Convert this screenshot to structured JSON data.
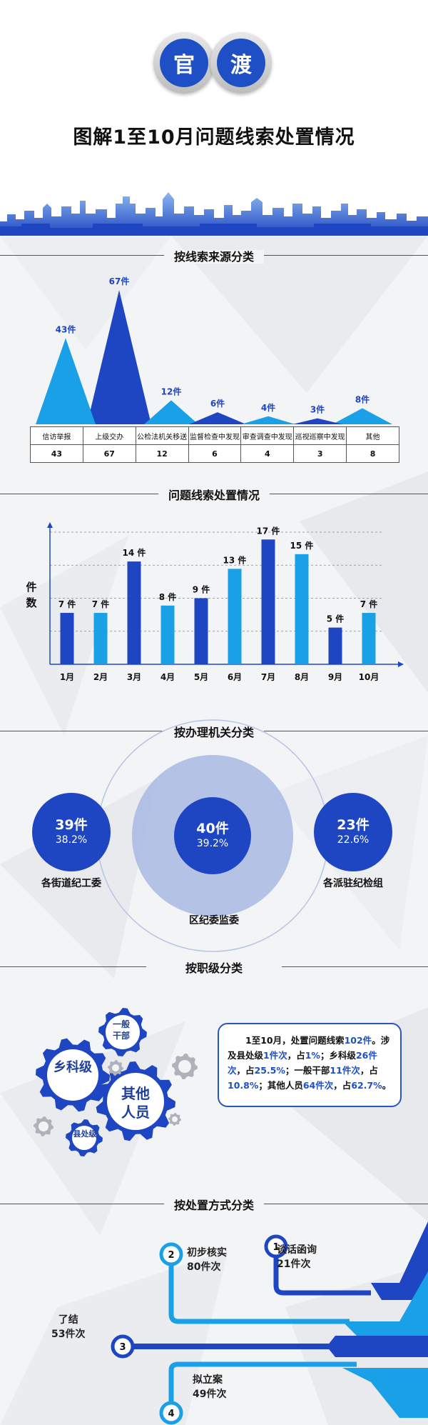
{
  "header": {
    "logo_chars": [
      "官",
      "渡"
    ],
    "title": "图解1至10月问题线索处置情况"
  },
  "colors": {
    "dark_blue": "#1f46c2",
    "light_blue": "#1aa0e6",
    "accent": "#2a55c5"
  },
  "sections": {
    "source": "按线索来源分类",
    "monthly": "问题线索处置情况",
    "agency": "按办理机关分类",
    "rank": "按职级分类",
    "method": "按处置方式分类"
  },
  "chart_data": [
    {
      "type": "bar",
      "title": "按线索来源分类",
      "categories": [
        "信访举报",
        "上级交办",
        "公检法机关移送",
        "监督检查中发现",
        "审查调查中发现",
        "巡视巡察中发现",
        "其他"
      ],
      "values": [
        43,
        67,
        12,
        6,
        4,
        3,
        8
      ],
      "value_labels": [
        "43件",
        "67件",
        "12件",
        "6件",
        "4件",
        "3件",
        "8件"
      ],
      "table_values": [
        "43",
        "67",
        "12",
        "6",
        "4",
        "3",
        "8"
      ]
    },
    {
      "type": "bar",
      "title": "问题线索处置情况",
      "ylabel": "件数",
      "categories": [
        "1月",
        "2月",
        "3月",
        "4月",
        "5月",
        "6月",
        "7月",
        "8月",
        "9月",
        "10月"
      ],
      "values": [
        7,
        7,
        14,
        8,
        9,
        13,
        17,
        15,
        5,
        7
      ],
      "value_labels": [
        "7 件",
        "7 件",
        "14 件",
        "8 件",
        "9 件",
        "13 件",
        "17 件",
        "15 件",
        "5 件",
        "7 件"
      ],
      "ylim": [
        0,
        18
      ],
      "grid": true
    },
    {
      "type": "pie",
      "title": "按办理机关分类",
      "categories": [
        "各街道纪工委",
        "区纪委监委",
        "各派驻纪检组"
      ],
      "values": [
        39,
        40,
        23
      ],
      "count_labels": [
        "39件",
        "40件",
        "23件"
      ],
      "percent_labels": [
        "38.2%",
        "39.2%",
        "22.6%"
      ]
    },
    {
      "type": "bar",
      "title": "按处置方式分类",
      "categories": [
        "谈话函询",
        "初步核实",
        "了结",
        "拟立案"
      ],
      "values": [
        21,
        80,
        53,
        49
      ],
      "numbers": [
        "1",
        "2",
        "3",
        "4"
      ],
      "value_labels": [
        "21件次",
        "80件次",
        "53件次",
        "49件次"
      ]
    }
  ],
  "rank": {
    "gears": [
      "乡科级",
      "一般\n干部",
      "其他\n人员",
      "县处级"
    ],
    "summary": [
      {
        "t": "1至10月，处置问题线索",
        "h": false
      },
      {
        "t": "102件",
        "h": true
      },
      {
        "t": "。涉及县处级",
        "h": false
      },
      {
        "t": "1件次",
        "h": true
      },
      {
        "t": "，占",
        "h": false
      },
      {
        "t": "1%",
        "h": true
      },
      {
        "t": "；乡科级",
        "h": false
      },
      {
        "t": "26件次",
        "h": true
      },
      {
        "t": "，占",
        "h": false
      },
      {
        "t": "25.5%",
        "h": true
      },
      {
        "t": "；一般干部",
        "h": false
      },
      {
        "t": "11件次",
        "h": true
      },
      {
        "t": "，占",
        "h": false
      },
      {
        "t": "10.8%",
        "h": true
      },
      {
        "t": "；其他人员",
        "h": false
      },
      {
        "t": "64件次",
        "h": true
      },
      {
        "t": "，占",
        "h": false
      },
      {
        "t": "62.7%",
        "h": true
      },
      {
        "t": "。",
        "h": false
      }
    ]
  }
}
